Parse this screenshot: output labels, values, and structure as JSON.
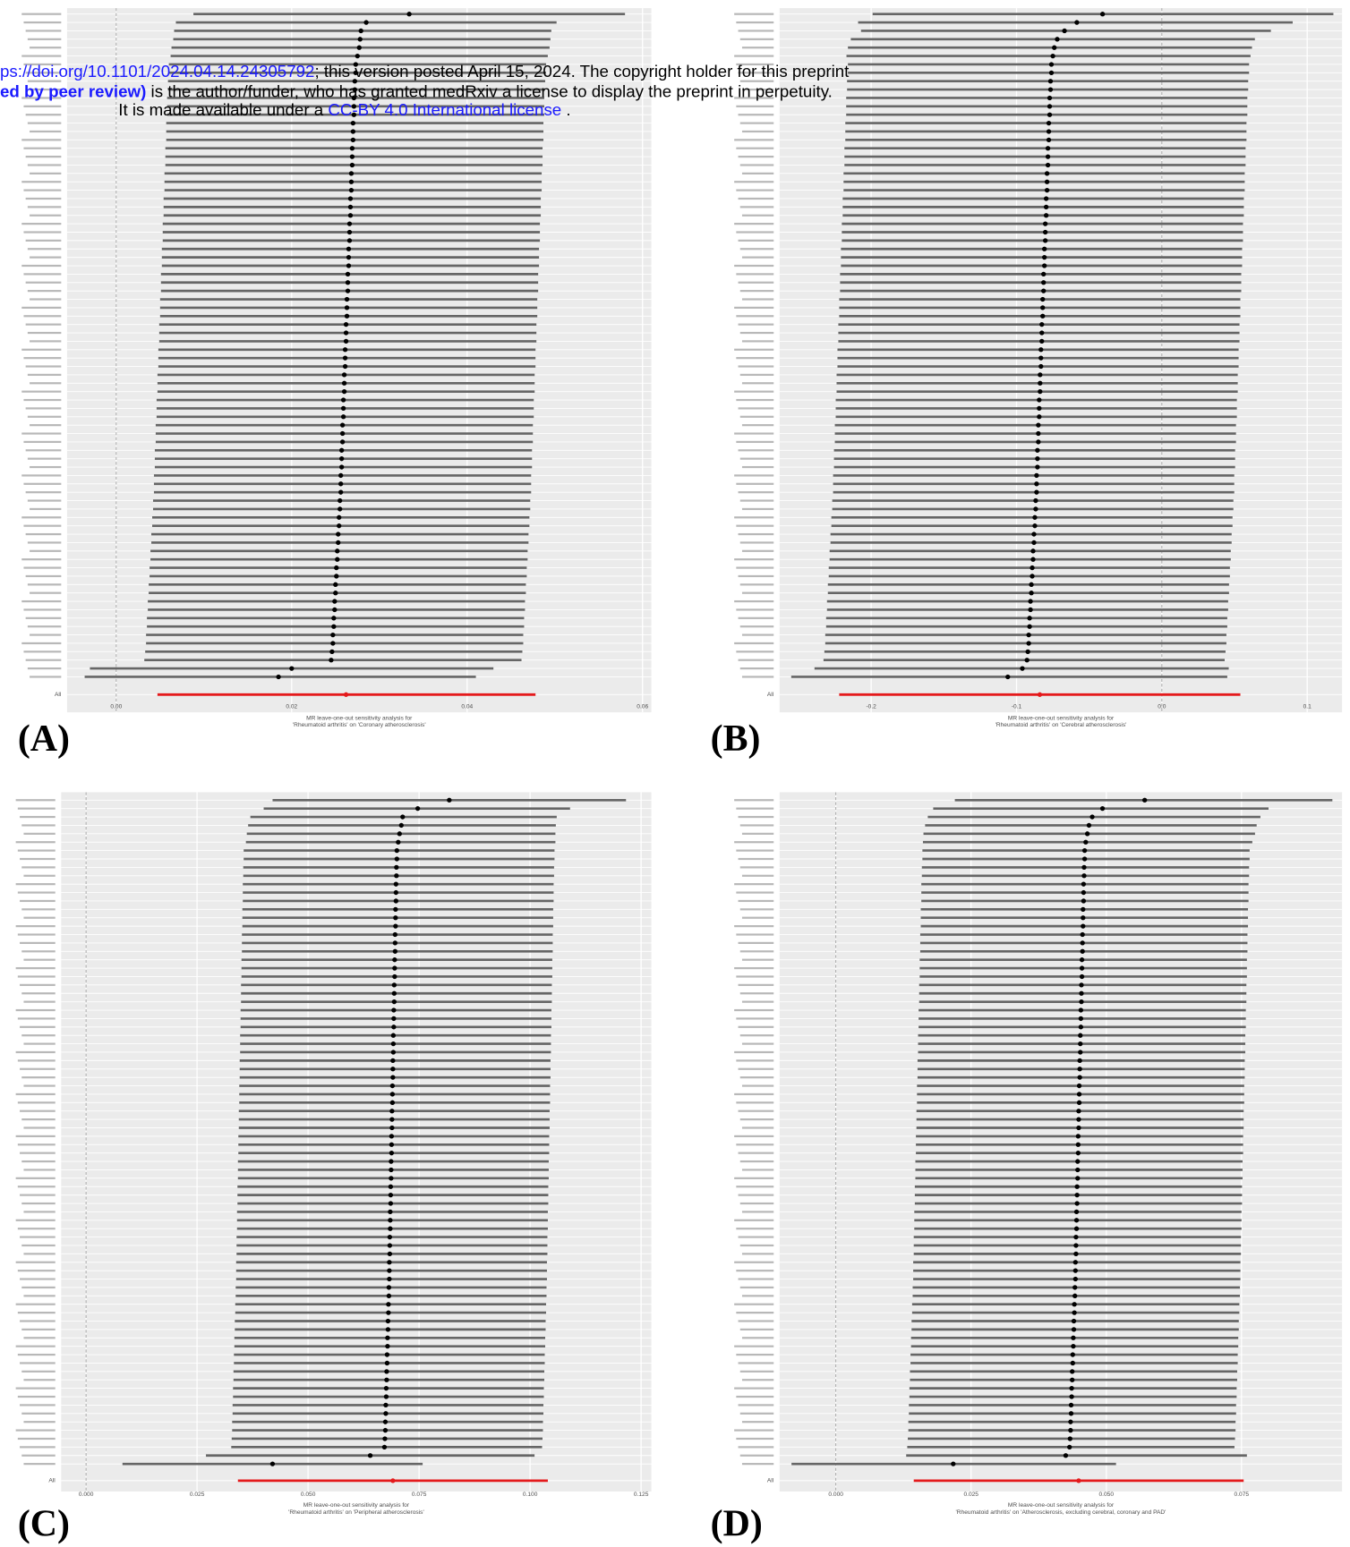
{
  "header": {
    "line1": {
      "link": "ps://doi.org/10.1101/2024.04.14.24305792",
      "text": "; this version posted April 15, 2024. The copyright holder for this preprint"
    },
    "line2": {
      "link": "ed by peer review)",
      "text": " is the author/funder, who has granted medRxiv a license to display the preprint in perpetuity."
    },
    "line3": {
      "before": "It is made available under a ",
      "link": "CC-BY 4.0 International license",
      "after": " ."
    }
  },
  "chart_data": [
    {
      "type": "forest",
      "panel_label": "(A)",
      "xlabel": [
        "MR leave-one-out sensitivity analysis for",
        "'Rheumatoid arthritis' on 'Coronary atherosclerosis'"
      ],
      "xlim": [
        -0.0056,
        0.061
      ],
      "xticks": [
        {
          "value": 0,
          "label": "0.00"
        },
        0.02,
        0.04,
        0.06
      ],
      "grid": true,
      "reference_line": 0,
      "point_color": "#000000",
      "ci_color": "#666666",
      "summary_color": "#e41a1c",
      "values": [
        0.0334,
        0.0285,
        0.0279,
        0.0278,
        0.0277,
        0.0275,
        0.0273,
        0.0273,
        0.0272,
        0.0272,
        0.0271,
        0.0271,
        0.0271,
        0.027,
        0.027,
        0.027,
        0.0269,
        0.0269,
        0.0269,
        0.0268,
        0.0268,
        0.0268,
        0.0267,
        0.0267,
        0.0267,
        0.0266,
        0.0266,
        0.0266,
        0.0265,
        0.0265,
        0.0265,
        0.0264,
        0.0264,
        0.0264,
        0.0263,
        0.0263,
        0.0263,
        0.0262,
        0.0262,
        0.0262,
        0.0261,
        0.0261,
        0.0261,
        0.026,
        0.026,
        0.026,
        0.0259,
        0.0259,
        0.0259,
        0.0258,
        0.0258,
        0.0258,
        0.0257,
        0.0257,
        0.0257,
        0.0256,
        0.0256,
        0.0256,
        0.0255,
        0.0255,
        0.0254,
        0.0254,
        0.0253,
        0.0253,
        0.0252,
        0.0252,
        0.0251,
        0.0251,
        0.025,
        0.025,
        0.0249,
        0.0249,
        0.0248,
        0.0248,
        0.0247,
        0.0247,
        0.0246,
        0.0245,
        0.02,
        0.0185
      ],
      "lower": [
        0.0088,
        0.0068,
        0.0066,
        0.0065,
        0.0063,
        0.0062,
        0.006,
        0.006,
        0.0059,
        0.0059,
        0.0058,
        0.0058,
        0.0058,
        0.0057,
        0.0057,
        0.0057,
        0.0056,
        0.0056,
        0.0056,
        0.0055,
        0.0055,
        0.0055,
        0.0054,
        0.0054,
        0.0054,
        0.0053,
        0.0053,
        0.0053,
        0.0052,
        0.0052,
        0.0052,
        0.0051,
        0.0051,
        0.0051,
        0.005,
        0.005,
        0.005,
        0.0049,
        0.0049,
        0.0049,
        0.0048,
        0.0048,
        0.0048,
        0.0047,
        0.0047,
        0.0047,
        0.0046,
        0.0046,
        0.0046,
        0.0045,
        0.0045,
        0.0045,
        0.0044,
        0.0044,
        0.0044,
        0.0043,
        0.0043,
        0.0043,
        0.0042,
        0.0042,
        0.0041,
        0.0041,
        0.004,
        0.004,
        0.0039,
        0.0039,
        0.0038,
        0.0038,
        0.0037,
        0.0037,
        0.0036,
        0.0036,
        0.0035,
        0.0035,
        0.0034,
        0.0034,
        0.0033,
        0.0032,
        -0.003,
        -0.0036
      ],
      "upper": [
        0.058,
        0.0502,
        0.0496,
        0.0495,
        0.0494,
        0.0492,
        0.049,
        0.049,
        0.0489,
        0.0489,
        0.0488,
        0.0488,
        0.0488,
        0.0487,
        0.0487,
        0.0487,
        0.0486,
        0.0486,
        0.0486,
        0.0485,
        0.0485,
        0.0485,
        0.0484,
        0.0484,
        0.0484,
        0.0483,
        0.0483,
        0.0483,
        0.0482,
        0.0482,
        0.0482,
        0.0481,
        0.0481,
        0.0481,
        0.048,
        0.048,
        0.048,
        0.0479,
        0.0479,
        0.0479,
        0.0478,
        0.0478,
        0.0478,
        0.0477,
        0.0477,
        0.0477,
        0.0476,
        0.0476,
        0.0476,
        0.0475,
        0.0475,
        0.0475,
        0.0474,
        0.0474,
        0.0474,
        0.0473,
        0.0473,
        0.0473,
        0.0472,
        0.0472,
        0.0471,
        0.0471,
        0.047,
        0.047,
        0.0469,
        0.0469,
        0.0468,
        0.0468,
        0.0467,
        0.0467,
        0.0466,
        0.0466,
        0.0465,
        0.0465,
        0.0464,
        0.0464,
        0.0463,
        0.0462,
        0.043,
        0.041
      ],
      "summary_label": "All",
      "summary_value": 0.0262,
      "summary_lower": 0.0047,
      "summary_upper": 0.0478
    },
    {
      "type": "forest",
      "panel_label": "(B)",
      "xlabel": [
        "MR leave-one-out sensitivity analysis for",
        "'Rheumatoid arthritis' on 'Cerebral atherosclerosis'"
      ],
      "xlim": [
        -0.263,
        0.124
      ],
      "xticks": [
        -0.2,
        -0.1,
        {
          "value": 0,
          "label": "0.0"
        },
        0.1
      ],
      "grid": true,
      "reference_line": 0,
      "point_color": "#000000",
      "ci_color": "#666666",
      "summary_color": "#e41a1c",
      "values": [
        -0.0408,
        -0.0585,
        -0.067,
        -0.072,
        -0.074,
        -0.075,
        -0.076,
        -0.076,
        -0.0766,
        -0.0766,
        -0.0772,
        -0.0772,
        -0.0772,
        -0.0778,
        -0.0778,
        -0.0778,
        -0.0784,
        -0.0784,
        -0.0784,
        -0.079,
        -0.079,
        -0.079,
        -0.0796,
        -0.0796,
        -0.0796,
        -0.0802,
        -0.0802,
        -0.0802,
        -0.0808,
        -0.0808,
        -0.0808,
        -0.0814,
        -0.0814,
        -0.0814,
        -0.082,
        -0.082,
        -0.082,
        -0.0826,
        -0.0826,
        -0.0826,
        -0.0832,
        -0.0832,
        -0.0832,
        -0.0838,
        -0.0838,
        -0.0838,
        -0.0844,
        -0.0844,
        -0.0844,
        -0.085,
        -0.085,
        -0.085,
        -0.0856,
        -0.0856,
        -0.0856,
        -0.0862,
        -0.0862,
        -0.0862,
        -0.0868,
        -0.0868,
        -0.0874,
        -0.0874,
        -0.088,
        -0.088,
        -0.0886,
        -0.0886,
        -0.0892,
        -0.0892,
        -0.0898,
        -0.0898,
        -0.0904,
        -0.0904,
        -0.091,
        -0.091,
        -0.0916,
        -0.0916,
        -0.0922,
        -0.0928,
        -0.096,
        -0.106
      ],
      "lower": [
        -0.199,
        -0.209,
        -0.207,
        -0.214,
        -0.216,
        -0.217,
        -0.216,
        -0.216,
        -0.2166,
        -0.2166,
        -0.2172,
        -0.2172,
        -0.2172,
        -0.2178,
        -0.2178,
        -0.2178,
        -0.2184,
        -0.2184,
        -0.2184,
        -0.219,
        -0.219,
        -0.219,
        -0.2196,
        -0.2196,
        -0.2196,
        -0.2202,
        -0.2202,
        -0.2202,
        -0.2208,
        -0.2208,
        -0.2208,
        -0.2214,
        -0.2214,
        -0.2214,
        -0.222,
        -0.222,
        -0.222,
        -0.2226,
        -0.2226,
        -0.2226,
        -0.2232,
        -0.2232,
        -0.2232,
        -0.2238,
        -0.2238,
        -0.2238,
        -0.2244,
        -0.2244,
        -0.2244,
        -0.225,
        -0.225,
        -0.225,
        -0.2256,
        -0.2256,
        -0.2256,
        -0.2262,
        -0.2262,
        -0.2262,
        -0.2268,
        -0.2268,
        -0.2274,
        -0.2274,
        -0.228,
        -0.228,
        -0.2286,
        -0.2286,
        -0.2292,
        -0.2292,
        -0.2298,
        -0.2298,
        -0.2304,
        -0.2304,
        -0.231,
        -0.231,
        -0.2316,
        -0.2316,
        -0.2322,
        -0.2328,
        -0.239,
        -0.255
      ],
      "upper": [
        0.118,
        0.09,
        0.075,
        0.064,
        0.062,
        0.061,
        0.06,
        0.06,
        0.0594,
        0.0594,
        0.0588,
        0.0588,
        0.0588,
        0.0582,
        0.0582,
        0.0582,
        0.0576,
        0.0576,
        0.0576,
        0.057,
        0.057,
        0.057,
        0.0564,
        0.0564,
        0.0564,
        0.0558,
        0.0558,
        0.0558,
        0.0552,
        0.0552,
        0.0552,
        0.0546,
        0.0546,
        0.0546,
        0.054,
        0.054,
        0.054,
        0.0534,
        0.0534,
        0.0534,
        0.0528,
        0.0528,
        0.0528,
        0.0522,
        0.0522,
        0.0522,
        0.0516,
        0.0516,
        0.0516,
        0.051,
        0.051,
        0.051,
        0.0504,
        0.0504,
        0.0504,
        0.0498,
        0.0498,
        0.0498,
        0.0492,
        0.0492,
        0.0486,
        0.0486,
        0.048,
        0.048,
        0.0474,
        0.0474,
        0.0468,
        0.0468,
        0.0462,
        0.0462,
        0.0456,
        0.0456,
        0.045,
        0.045,
        0.0444,
        0.0444,
        0.0438,
        0.0432,
        0.046,
        0.045
      ],
      "summary_label": "All",
      "summary_value": -0.084,
      "summary_lower": -0.222,
      "summary_upper": 0.054
    },
    {
      "type": "forest",
      "panel_label": "(C)",
      "xlabel": [
        "MR leave-one-out sensitivity analysis for",
        "'Rheumatoid arthritis' on 'Peripheral atherosclerosis'"
      ],
      "xlim": [
        -0.0056,
        0.1273
      ],
      "xticks": [
        {
          "value": 0,
          "label": "0.000"
        },
        0.025,
        {
          "value": 0.05,
          "label": "0.050"
        },
        0.075,
        {
          "value": 0.1,
          "label": "0.100"
        },
        0.125
      ],
      "grid": true,
      "reference_line": 0,
      "point_color": "#000000",
      "ci_color": "#666666",
      "summary_color": "#e41a1c",
      "values": [
        0.0818,
        0.0747,
        0.0713,
        0.071,
        0.0706,
        0.0703,
        0.07,
        0.07,
        0.0699,
        0.0699,
        0.0698,
        0.0698,
        0.0698,
        0.0697,
        0.0697,
        0.0697,
        0.0696,
        0.0696,
        0.0696,
        0.0695,
        0.0695,
        0.0695,
        0.0694,
        0.0694,
        0.0694,
        0.0693,
        0.0693,
        0.0693,
        0.0692,
        0.0692,
        0.0692,
        0.0691,
        0.0691,
        0.0691,
        0.069,
        0.069,
        0.069,
        0.0689,
        0.0689,
        0.0689,
        0.0688,
        0.0688,
        0.0688,
        0.0687,
        0.0687,
        0.0687,
        0.0686,
        0.0686,
        0.0686,
        0.0685,
        0.0685,
        0.0685,
        0.0684,
        0.0684,
        0.0684,
        0.0683,
        0.0683,
        0.0683,
        0.0682,
        0.0682,
        0.0681,
        0.0681,
        0.068,
        0.068,
        0.0679,
        0.0679,
        0.0678,
        0.0678,
        0.0677,
        0.0677,
        0.0676,
        0.0676,
        0.0675,
        0.0675,
        0.0674,
        0.0674,
        0.0673,
        0.0672,
        0.064,
        0.042
      ],
      "lower": [
        0.042,
        0.04,
        0.037,
        0.0365,
        0.0362,
        0.036,
        0.0355,
        0.0355,
        0.0354,
        0.0354,
        0.0353,
        0.0353,
        0.0353,
        0.0352,
        0.0352,
        0.0352,
        0.0351,
        0.0351,
        0.0351,
        0.035,
        0.035,
        0.035,
        0.0349,
        0.0349,
        0.0349,
        0.0348,
        0.0348,
        0.0348,
        0.0347,
        0.0347,
        0.0347,
        0.0346,
        0.0346,
        0.0346,
        0.0345,
        0.0345,
        0.0345,
        0.0344,
        0.0344,
        0.0344,
        0.0343,
        0.0343,
        0.0343,
        0.0342,
        0.0342,
        0.0342,
        0.0341,
        0.0341,
        0.0341,
        0.034,
        0.034,
        0.034,
        0.0339,
        0.0339,
        0.0339,
        0.0338,
        0.0338,
        0.0338,
        0.0337,
        0.0337,
        0.0336,
        0.0336,
        0.0335,
        0.0335,
        0.0334,
        0.0334,
        0.0333,
        0.0333,
        0.0332,
        0.0332,
        0.0331,
        0.0331,
        0.033,
        0.033,
        0.0329,
        0.0329,
        0.0328,
        0.0327,
        0.027,
        0.0082
      ],
      "upper": [
        0.1216,
        0.109,
        0.106,
        0.1058,
        0.1057,
        0.1057,
        0.1055,
        0.1055,
        0.1054,
        0.1054,
        0.1053,
        0.1053,
        0.1053,
        0.1052,
        0.1052,
        0.1052,
        0.1051,
        0.1051,
        0.1051,
        0.105,
        0.105,
        0.105,
        0.1049,
        0.1049,
        0.1049,
        0.1048,
        0.1048,
        0.1048,
        0.1047,
        0.1047,
        0.1047,
        0.1046,
        0.1046,
        0.1046,
        0.1045,
        0.1045,
        0.1045,
        0.1044,
        0.1044,
        0.1044,
        0.1043,
        0.1043,
        0.1043,
        0.1042,
        0.1042,
        0.1042,
        0.1041,
        0.1041,
        0.1041,
        0.104,
        0.104,
        0.104,
        0.1039,
        0.1039,
        0.1039,
        0.1038,
        0.1038,
        0.1038,
        0.1037,
        0.1037,
        0.1036,
        0.1036,
        0.1035,
        0.1035,
        0.1034,
        0.1034,
        0.1033,
        0.1033,
        0.1032,
        0.1032,
        0.1031,
        0.1031,
        0.103,
        0.103,
        0.1029,
        0.1029,
        0.1028,
        0.1027,
        0.101,
        0.0758
      ],
      "summary_label": "All",
      "summary_value": 0.0691,
      "summary_lower": 0.0342,
      "summary_upper": 0.104
    },
    {
      "type": "forest",
      "panel_label": "(D)",
      "xlabel": [
        "MR leave-one-out sensitivity analysis for",
        "'Rheumatoid arthritis' on 'Atherosclerosis, excluding cerebral, coronary and PAD'"
      ],
      "xlim": [
        -0.0104,
        0.0936
      ],
      "xticks": [
        {
          "value": 0,
          "label": "0.000"
        },
        0.025,
        {
          "value": 0.05,
          "label": "0.050"
        },
        0.075
      ],
      "grid": true,
      "reference_line": 0,
      "point_color": "#000000",
      "ci_color": "#666666",
      "summary_color": "#e41a1c",
      "values": [
        0.0571,
        0.0493,
        0.0474,
        0.0468,
        0.0465,
        0.0462,
        0.046,
        0.046,
        0.0459,
        0.0459,
        0.0458,
        0.0458,
        0.0458,
        0.0457,
        0.0457,
        0.0457,
        0.0456,
        0.0456,
        0.0456,
        0.0455,
        0.0455,
        0.0455,
        0.0454,
        0.0454,
        0.0454,
        0.0453,
        0.0453,
        0.0453,
        0.0452,
        0.0452,
        0.0452,
        0.0451,
        0.0451,
        0.0451,
        0.045,
        0.045,
        0.045,
        0.0449,
        0.0449,
        0.0449,
        0.0448,
        0.0448,
        0.0448,
        0.0447,
        0.0447,
        0.0447,
        0.0446,
        0.0446,
        0.0446,
        0.0445,
        0.0445,
        0.0445,
        0.0444,
        0.0444,
        0.0444,
        0.0443,
        0.0443,
        0.0443,
        0.0442,
        0.0442,
        0.0441,
        0.0441,
        0.044,
        0.044,
        0.0439,
        0.0439,
        0.0438,
        0.0438,
        0.0437,
        0.0437,
        0.0436,
        0.0436,
        0.0435,
        0.0435,
        0.0434,
        0.0434,
        0.0433,
        0.0432,
        0.0425,
        0.0217
      ],
      "lower": [
        0.022,
        0.018,
        0.017,
        0.0165,
        0.0162,
        0.0161,
        0.016,
        0.016,
        0.0159,
        0.0159,
        0.0158,
        0.0158,
        0.0158,
        0.0157,
        0.0157,
        0.0157,
        0.0156,
        0.0156,
        0.0156,
        0.0155,
        0.0155,
        0.0155,
        0.0154,
        0.0154,
        0.0154,
        0.0153,
        0.0153,
        0.0153,
        0.0152,
        0.0152,
        0.0152,
        0.0151,
        0.0151,
        0.0151,
        0.015,
        0.015,
        0.015,
        0.0149,
        0.0149,
        0.0149,
        0.0148,
        0.0148,
        0.0148,
        0.0147,
        0.0147,
        0.0147,
        0.0146,
        0.0146,
        0.0146,
        0.0145,
        0.0145,
        0.0145,
        0.0144,
        0.0144,
        0.0144,
        0.0143,
        0.0143,
        0.0143,
        0.0142,
        0.0142,
        0.0141,
        0.0141,
        0.014,
        0.014,
        0.0139,
        0.0139,
        0.0138,
        0.0138,
        0.0137,
        0.0137,
        0.0136,
        0.0136,
        0.0135,
        0.0135,
        0.0134,
        0.0134,
        0.0133,
        0.0132,
        0.013,
        -0.0082
      ],
      "upper": [
        0.0918,
        0.08,
        0.0785,
        0.0778,
        0.0775,
        0.077,
        0.0765,
        0.0765,
        0.0764,
        0.0764,
        0.0763,
        0.0763,
        0.0763,
        0.0762,
        0.0762,
        0.0762,
        0.0761,
        0.0761,
        0.0761,
        0.076,
        0.076,
        0.076,
        0.0759,
        0.0759,
        0.0759,
        0.0758,
        0.0758,
        0.0758,
        0.0757,
        0.0757,
        0.0757,
        0.0756,
        0.0756,
        0.0756,
        0.0755,
        0.0755,
        0.0755,
        0.0754,
        0.0754,
        0.0754,
        0.0753,
        0.0753,
        0.0753,
        0.0752,
        0.0752,
        0.0752,
        0.0751,
        0.0751,
        0.0751,
        0.075,
        0.075,
        0.075,
        0.0749,
        0.0749,
        0.0749,
        0.0748,
        0.0748,
        0.0748,
        0.0747,
        0.0747,
        0.0746,
        0.0746,
        0.0745,
        0.0745,
        0.0744,
        0.0744,
        0.0743,
        0.0743,
        0.0742,
        0.0742,
        0.0741,
        0.0741,
        0.074,
        0.074,
        0.0739,
        0.0739,
        0.0738,
        0.0737,
        0.076,
        0.0518
      ],
      "summary_label": "All",
      "summary_value": 0.0449,
      "summary_lower": 0.0144,
      "summary_upper": 0.0754
    }
  ]
}
